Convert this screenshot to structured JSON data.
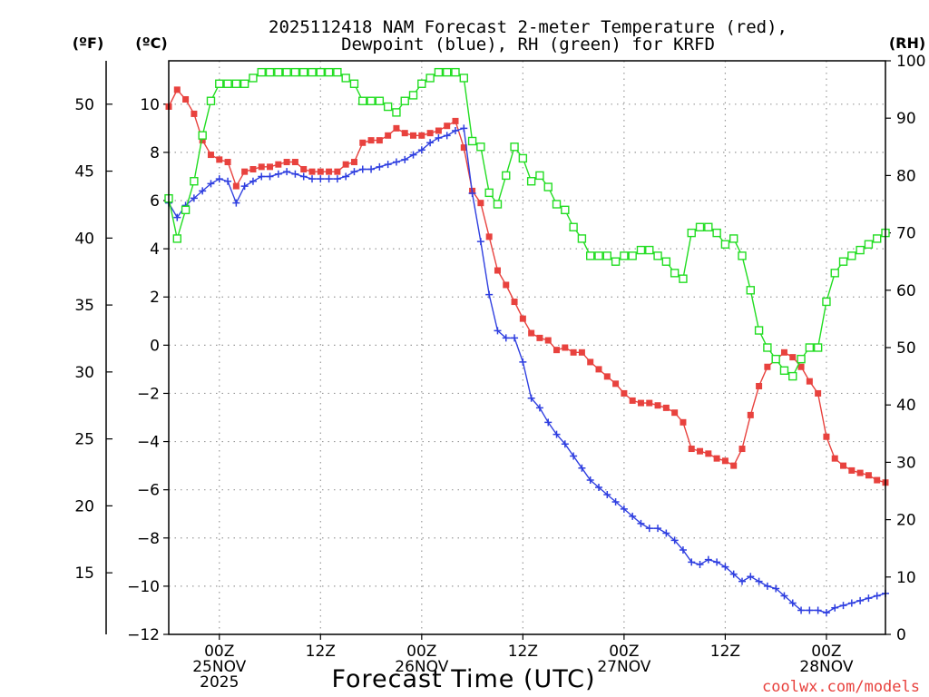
{
  "chart_data": {
    "type": "line",
    "title_line1": "2025112418 NAM Forecast 2-meter Temperature (red),",
    "title_line2": "Dewpoint (blue), RH (green) for KRFD",
    "xlabel": "Forecast Time (UTC)",
    "credit": "coolwx.com/models",
    "units": {
      "fahrenheit": "(ºF)",
      "celsius": "(ºC)",
      "rh": "(RH)"
    },
    "x_hours_range": [
      -6,
      79
    ],
    "celsius_range": [
      -12,
      11.8
    ],
    "rh_range": [
      0,
      100
    ],
    "fahrenheit_ticks": [
      "50",
      "45",
      "40",
      "35",
      "30",
      "25",
      "20",
      "15"
    ],
    "fahrenheit_tick_values": [
      50,
      45,
      40,
      35,
      30,
      25,
      20,
      15
    ],
    "celsius_ticks": [
      "10",
      "8",
      "6",
      "4",
      "2",
      "0",
      "−2",
      "−4",
      "−6",
      "−8",
      "−10",
      "−12"
    ],
    "celsius_tick_values": [
      10,
      8,
      6,
      4,
      2,
      0,
      -2,
      -4,
      -6,
      -8,
      -10,
      -12
    ],
    "rh_ticks": [
      "100",
      "90",
      "80",
      "70",
      "60",
      "50",
      "40",
      "30",
      "20",
      "10",
      "0"
    ],
    "rh_tick_values": [
      100,
      90,
      80,
      70,
      60,
      50,
      40,
      30,
      20,
      10,
      0
    ],
    "x_ticks": [
      {
        "hour": 0,
        "lines": [
          "00Z",
          "25NOV",
          "2025"
        ]
      },
      {
        "hour": 12,
        "lines": [
          "12Z"
        ]
      },
      {
        "hour": 24,
        "lines": [
          "00Z",
          "26NOV"
        ]
      },
      {
        "hour": 36,
        "lines": [
          "12Z"
        ]
      },
      {
        "hour": 48,
        "lines": [
          "00Z",
          "27NOV"
        ]
      },
      {
        "hour": 60,
        "lines": [
          "12Z"
        ]
      },
      {
        "hour": 72,
        "lines": [
          "00Z",
          "28NOV"
        ]
      }
    ],
    "series": [
      {
        "name": "Temperature",
        "unit": "celsius",
        "color": "#e8423e",
        "marker": "square-filled",
        "points": [
          [
            -6,
            9.9
          ],
          [
            -5,
            10.6
          ],
          [
            -4,
            10.2
          ],
          [
            -3,
            9.6
          ],
          [
            -2,
            8.5
          ],
          [
            -1,
            7.9
          ],
          [
            0,
            7.7
          ],
          [
            1,
            7.6
          ],
          [
            2,
            6.6
          ],
          [
            3,
            7.2
          ],
          [
            4,
            7.3
          ],
          [
            5,
            7.4
          ],
          [
            6,
            7.4
          ],
          [
            7,
            7.5
          ],
          [
            8,
            7.6
          ],
          [
            9,
            7.6
          ],
          [
            10,
            7.3
          ],
          [
            11,
            7.2
          ],
          [
            12,
            7.2
          ],
          [
            13,
            7.2
          ],
          [
            14,
            7.2
          ],
          [
            15,
            7.5
          ],
          [
            16,
            7.6
          ],
          [
            17,
            8.4
          ],
          [
            18,
            8.5
          ],
          [
            19,
            8.5
          ],
          [
            20,
            8.7
          ],
          [
            21,
            9.0
          ],
          [
            22,
            8.8
          ],
          [
            23,
            8.7
          ],
          [
            24,
            8.7
          ],
          [
            25,
            8.8
          ],
          [
            26,
            8.9
          ],
          [
            27,
            9.1
          ],
          [
            28,
            9.3
          ],
          [
            29,
            8.2
          ],
          [
            30,
            6.4
          ],
          [
            31,
            5.9
          ],
          [
            32,
            4.5
          ],
          [
            33,
            3.1
          ],
          [
            34,
            2.5
          ],
          [
            35,
            1.8
          ],
          [
            36,
            1.1
          ],
          [
            37,
            0.5
          ],
          [
            38,
            0.3
          ],
          [
            39,
            0.2
          ],
          [
            40,
            -0.2
          ],
          [
            41,
            -0.1
          ],
          [
            42,
            -0.3
          ],
          [
            43,
            -0.3
          ],
          [
            44,
            -0.7
          ],
          [
            45,
            -1.0
          ],
          [
            46,
            -1.3
          ],
          [
            47,
            -1.6
          ],
          [
            48,
            -2.0
          ],
          [
            49,
            -2.3
          ],
          [
            50,
            -2.4
          ],
          [
            51,
            -2.4
          ],
          [
            52,
            -2.5
          ],
          [
            53,
            -2.6
          ],
          [
            54,
            -2.8
          ],
          [
            55,
            -3.2
          ],
          [
            56,
            -4.3
          ],
          [
            57,
            -4.4
          ],
          [
            58,
            -4.5
          ],
          [
            59,
            -4.7
          ],
          [
            60,
            -4.8
          ],
          [
            61,
            -5.0
          ],
          [
            62,
            -4.3
          ],
          [
            63,
            -2.9
          ],
          [
            64,
            -1.7
          ],
          [
            65,
            -0.9
          ],
          [
            66,
            -0.6
          ],
          [
            67,
            -0.3
          ],
          [
            68,
            -0.5
          ],
          [
            69,
            -0.9
          ],
          [
            70,
            -1.5
          ],
          [
            71,
            -2.0
          ],
          [
            72,
            -3.8
          ],
          [
            73,
            -4.7
          ],
          [
            74,
            -5.0
          ],
          [
            75,
            -5.2
          ],
          [
            76,
            -5.3
          ],
          [
            77,
            -5.4
          ],
          [
            78,
            -5.6
          ],
          [
            79,
            -5.7
          ]
        ]
      },
      {
        "name": "Dewpoint",
        "unit": "celsius",
        "color": "#2f3fe0",
        "marker": "plus",
        "points": [
          [
            -6,
            5.9
          ],
          [
            -5,
            5.3
          ],
          [
            -4,
            5.8
          ],
          [
            -3,
            6.1
          ],
          [
            -2,
            6.4
          ],
          [
            -1,
            6.7
          ],
          [
            0,
            6.9
          ],
          [
            1,
            6.8
          ],
          [
            2,
            5.9
          ],
          [
            3,
            6.6
          ],
          [
            4,
            6.8
          ],
          [
            5,
            7.0
          ],
          [
            6,
            7.0
          ],
          [
            7,
            7.1
          ],
          [
            8,
            7.2
          ],
          [
            9,
            7.1
          ],
          [
            10,
            7.0
          ],
          [
            11,
            6.9
          ],
          [
            12,
            6.9
          ],
          [
            13,
            6.9
          ],
          [
            14,
            6.9
          ],
          [
            15,
            7.0
          ],
          [
            16,
            7.2
          ],
          [
            17,
            7.3
          ],
          [
            18,
            7.3
          ],
          [
            19,
            7.4
          ],
          [
            20,
            7.5
          ],
          [
            21,
            7.6
          ],
          [
            22,
            7.7
          ],
          [
            23,
            7.9
          ],
          [
            24,
            8.1
          ],
          [
            25,
            8.4
          ],
          [
            26,
            8.6
          ],
          [
            27,
            8.7
          ],
          [
            28,
            8.9
          ],
          [
            29,
            9.0
          ],
          [
            30,
            6.3
          ],
          [
            31,
            4.3
          ],
          [
            32,
            2.1
          ],
          [
            33,
            0.6
          ],
          [
            34,
            0.3
          ],
          [
            35,
            0.3
          ],
          [
            36,
            -0.7
          ],
          [
            37,
            -2.2
          ],
          [
            38,
            -2.6
          ],
          [
            39,
            -3.2
          ],
          [
            40,
            -3.7
          ],
          [
            41,
            -4.1
          ],
          [
            42,
            -4.6
          ],
          [
            43,
            -5.1
          ],
          [
            44,
            -5.6
          ],
          [
            45,
            -5.9
          ],
          [
            46,
            -6.2
          ],
          [
            47,
            -6.5
          ],
          [
            48,
            -6.8
          ],
          [
            49,
            -7.1
          ],
          [
            50,
            -7.4
          ],
          [
            51,
            -7.6
          ],
          [
            52,
            -7.6
          ],
          [
            53,
            -7.8
          ],
          [
            54,
            -8.1
          ],
          [
            55,
            -8.5
          ],
          [
            56,
            -9.0
          ],
          [
            57,
            -9.1
          ],
          [
            58,
            -8.9
          ],
          [
            59,
            -9.0
          ],
          [
            60,
            -9.2
          ],
          [
            61,
            -9.5
          ],
          [
            62,
            -9.8
          ],
          [
            63,
            -9.6
          ],
          [
            64,
            -9.8
          ],
          [
            65,
            -10.0
          ],
          [
            66,
            -10.1
          ],
          [
            67,
            -10.4
          ],
          [
            68,
            -10.7
          ],
          [
            69,
            -11.0
          ],
          [
            70,
            -11.0
          ],
          [
            71,
            -11.0
          ],
          [
            72,
            -11.1
          ],
          [
            73,
            -10.9
          ],
          [
            74,
            -10.8
          ],
          [
            75,
            -10.7
          ],
          [
            76,
            -10.6
          ],
          [
            77,
            -10.5
          ],
          [
            78,
            -10.4
          ],
          [
            79,
            -10.3
          ]
        ]
      },
      {
        "name": "RH",
        "unit": "rh",
        "color": "#22dd22",
        "marker": "square-open",
        "points": [
          [
            -6,
            76
          ],
          [
            -5,
            69
          ],
          [
            -4,
            74
          ],
          [
            -3,
            79
          ],
          [
            -2,
            87
          ],
          [
            -1,
            93
          ],
          [
            0,
            96
          ],
          [
            1,
            96
          ],
          [
            2,
            96
          ],
          [
            3,
            96
          ],
          [
            4,
            97
          ],
          [
            5,
            98
          ],
          [
            6,
            98
          ],
          [
            7,
            98
          ],
          [
            8,
            98
          ],
          [
            9,
            98
          ],
          [
            10,
            98
          ],
          [
            11,
            98
          ],
          [
            12,
            98
          ],
          [
            13,
            98
          ],
          [
            14,
            98
          ],
          [
            15,
            97
          ],
          [
            16,
            96
          ],
          [
            17,
            93
          ],
          [
            18,
            93
          ],
          [
            19,
            93
          ],
          [
            20,
            92
          ],
          [
            21,
            91
          ],
          [
            22,
            93
          ],
          [
            23,
            94
          ],
          [
            24,
            96
          ],
          [
            25,
            97
          ],
          [
            26,
            98
          ],
          [
            27,
            98
          ],
          [
            28,
            98
          ],
          [
            29,
            97
          ],
          [
            30,
            86
          ],
          [
            31,
            85
          ],
          [
            32,
            77
          ],
          [
            33,
            75
          ],
          [
            34,
            80
          ],
          [
            35,
            85
          ],
          [
            36,
            83
          ],
          [
            37,
            79
          ],
          [
            38,
            80
          ],
          [
            39,
            78
          ],
          [
            40,
            75
          ],
          [
            41,
            74
          ],
          [
            42,
            71
          ],
          [
            43,
            69
          ],
          [
            44,
            66
          ],
          [
            45,
            66
          ],
          [
            46,
            66
          ],
          [
            47,
            65
          ],
          [
            48,
            66
          ],
          [
            49,
            66
          ],
          [
            50,
            67
          ],
          [
            51,
            67
          ],
          [
            52,
            66
          ],
          [
            53,
            65
          ],
          [
            54,
            63
          ],
          [
            55,
            62
          ],
          [
            56,
            70
          ],
          [
            57,
            71
          ],
          [
            58,
            71
          ],
          [
            59,
            70
          ],
          [
            60,
            68
          ],
          [
            61,
            69
          ],
          [
            62,
            66
          ],
          [
            63,
            60
          ],
          [
            64,
            53
          ],
          [
            65,
            50
          ],
          [
            66,
            48
          ],
          [
            67,
            46
          ],
          [
            68,
            45
          ],
          [
            69,
            48
          ],
          [
            70,
            50
          ],
          [
            71,
            50
          ],
          [
            72,
            58
          ],
          [
            73,
            63
          ],
          [
            74,
            65
          ],
          [
            75,
            66
          ],
          [
            76,
            67
          ],
          [
            77,
            68
          ],
          [
            78,
            69
          ],
          [
            79,
            70
          ]
        ]
      }
    ]
  }
}
